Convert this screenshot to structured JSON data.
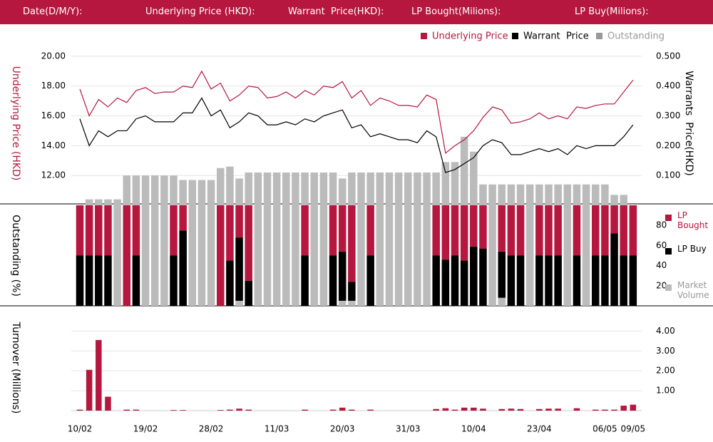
{
  "header": {
    "labels": [
      "Date(D/M/Y):",
      "Underlying Price (HKD):",
      "Warrant  Price(HKD):",
      "LP Bought(Milions):",
      "LP Buy(Milions):"
    ]
  },
  "chart_data": [
    {
      "type": "line",
      "ylabel": "Underlying Price (HKD)",
      "y2label": "Warrants  Price(HKD)",
      "ylim": [
        10,
        21
      ],
      "yticks": [
        {
          "value": 12,
          "label": "12.00"
        },
        {
          "value": 14,
          "label": "14.00"
        },
        {
          "value": 16,
          "label": "16.00"
        },
        {
          "value": 18,
          "label": "18.00"
        },
        {
          "value": 20,
          "label": "20.00"
        }
      ],
      "y2lim": [
        0,
        0.55
      ],
      "y2ticks": [
        {
          "value": 0.1,
          "label": "0.100"
        },
        {
          "value": 0.2,
          "label": "0.200"
        },
        {
          "value": 0.3,
          "label": "0.300"
        },
        {
          "value": 0.4,
          "label": "0.400"
        },
        {
          "value": 0.5,
          "label": "0.500"
        }
      ],
      "grid": true,
      "series": [
        {
          "name": "Underlying Price",
          "color": "#b5173e",
          "type": "line",
          "values": [
            17.8,
            16.0,
            17.1,
            16.6,
            17.2,
            16.9,
            17.7,
            17.9,
            17.5,
            17.6,
            17.6,
            18.0,
            17.9,
            19.0,
            17.8,
            18.2,
            17.0,
            17.4,
            18.0,
            17.9,
            17.2,
            17.3,
            17.6,
            17.2,
            17.7,
            17.4,
            18.0,
            17.9,
            18.3,
            17.2,
            17.7,
            16.7,
            17.2,
            17.0,
            16.7,
            16.7,
            16.6,
            17.4,
            17.1,
            13.5,
            14.0,
            14.4,
            15.0,
            15.9,
            16.6,
            16.4,
            15.5,
            15.6,
            15.8,
            16.2,
            15.8,
            16.0,
            15.8,
            16.6,
            16.5,
            16.7,
            16.8,
            16.8,
            17.6,
            18.4
          ]
        },
        {
          "name": "Warrant  Price",
          "color": "#000000",
          "type": "line",
          "axis": "y2",
          "values": [
            0.29,
            0.2,
            0.25,
            0.23,
            0.25,
            0.25,
            0.29,
            0.3,
            0.28,
            0.28,
            0.28,
            0.31,
            0.31,
            0.36,
            0.3,
            0.32,
            0.26,
            0.28,
            0.31,
            0.3,
            0.27,
            0.27,
            0.28,
            0.27,
            0.29,
            0.28,
            0.3,
            0.31,
            0.32,
            0.26,
            0.27,
            0.23,
            0.24,
            0.23,
            0.22,
            0.22,
            0.21,
            0.25,
            0.23,
            0.11,
            0.12,
            0.14,
            0.16,
            0.2,
            0.22,
            0.21,
            0.17,
            0.17,
            0.18,
            0.19,
            0.18,
            0.19,
            0.17,
            0.2,
            0.19,
            0.2,
            0.2,
            0.2,
            0.23,
            0.27
          ]
        },
        {
          "name": "Outstanding",
          "color": "#bbbbbb",
          "type": "bar",
          "axis": "y2",
          "values": [
            0,
            0.02,
            0.02,
            0.02,
            0.02,
            0.1,
            0.1,
            0.1,
            0.1,
            0.1,
            0.1,
            0.085,
            0.085,
            0.085,
            0.085,
            0.125,
            0.13,
            0.09,
            0.11,
            0.11,
            0.11,
            0.11,
            0.11,
            0.11,
            0.11,
            0.11,
            0.11,
            0.11,
            0.09,
            0.11,
            0.11,
            0.11,
            0.11,
            0.11,
            0.11,
            0.11,
            0.11,
            0.11,
            0.11,
            0.145,
            0.145,
            0.23,
            0.18,
            0.07,
            0.07,
            0.07,
            0.07,
            0.07,
            0.07,
            0.07,
            0.07,
            0.07,
            0.07,
            0.07,
            0.07,
            0.07,
            0.07,
            0.035,
            0.035,
            0
          ]
        }
      ]
    },
    {
      "type": "bar",
      "stacked": true,
      "ylabel": "Outstanding (%)",
      "ylim": [
        0,
        100
      ],
      "yticks": [
        20,
        40,
        60,
        80
      ],
      "series": [
        {
          "name": "Market Volume",
          "color": "#bbbbbb",
          "values": [
            0,
            0,
            0,
            0,
            100,
            0,
            0,
            100,
            100,
            100,
            0,
            0,
            100,
            100,
            100,
            0,
            0,
            5,
            0,
            100,
            100,
            100,
            100,
            100,
            0,
            100,
            100,
            0,
            5,
            5,
            100,
            0,
            100,
            100,
            100,
            100,
            100,
            100,
            0,
            0,
            0,
            0,
            0,
            0,
            100,
            8,
            0,
            0,
            100,
            0,
            0,
            0,
            100,
            0,
            100,
            0,
            0,
            0,
            0,
            0
          ]
        },
        {
          "name": "LP Buy",
          "color": "#000000",
          "values": [
            50,
            50,
            50,
            50,
            0,
            0,
            50,
            0,
            0,
            0,
            50,
            75,
            0,
            0,
            0,
            0,
            45,
            63,
            25,
            0,
            0,
            0,
            0,
            0,
            50,
            0,
            0,
            50,
            49,
            19,
            0,
            50,
            0,
            0,
            0,
            0,
            0,
            0,
            50,
            46,
            50,
            45,
            59,
            57,
            0,
            46,
            50,
            50,
            0,
            50,
            50,
            50,
            0,
            50,
            0,
            50,
            50,
            72,
            50,
            50
          ]
        },
        {
          "name": "LP Bought",
          "color": "#b5173e",
          "values": [
            50,
            50,
            50,
            50,
            0,
            100,
            50,
            0,
            0,
            0,
            50,
            25,
            0,
            0,
            0,
            100,
            55,
            32,
            75,
            0,
            0,
            0,
            0,
            0,
            50,
            0,
            0,
            50,
            46,
            76,
            0,
            50,
            0,
            0,
            0,
            0,
            0,
            0,
            50,
            54,
            50,
            55,
            41,
            43,
            0,
            46,
            50,
            50,
            0,
            50,
            50,
            50,
            0,
            50,
            0,
            50,
            50,
            28,
            50,
            50
          ]
        }
      ]
    },
    {
      "type": "bar",
      "ylabel": "Turnover (Millions)",
      "ylim": [
        0,
        4.3
      ],
      "yticks": [
        {
          "value": 1,
          "label": "1.00"
        },
        {
          "value": 2,
          "label": "2.00"
        },
        {
          "value": 3,
          "label": "3.00"
        },
        {
          "value": 4,
          "label": "4.00"
        }
      ],
      "grid": true,
      "color": "#b5173e",
      "categories": [
        "10/02",
        null,
        null,
        null,
        null,
        null,
        null,
        "19/02",
        null,
        null,
        null,
        null,
        null,
        null,
        "28/02",
        null,
        null,
        null,
        null,
        null,
        null,
        "11/03",
        null,
        null,
        null,
        null,
        null,
        null,
        "20/03",
        null,
        null,
        null,
        null,
        null,
        null,
        "31/03",
        null,
        null,
        null,
        null,
        null,
        null,
        "10/04",
        null,
        null,
        null,
        null,
        null,
        null,
        "23/04",
        null,
        null,
        null,
        null,
        null,
        null,
        "06/05",
        null,
        null,
        "09/05"
      ],
      "values": [
        0.05,
        2.05,
        3.55,
        0.7,
        0,
        0.05,
        0.05,
        0,
        0,
        0,
        0.03,
        0.03,
        0,
        0,
        0,
        0.03,
        0.05,
        0.1,
        0.05,
        0,
        0,
        0,
        0,
        0,
        0.05,
        0,
        0,
        0.05,
        0.15,
        0.05,
        0,
        0.05,
        0,
        0,
        0,
        0,
        0,
        0,
        0.08,
        0.12,
        0.05,
        0.15,
        0.15,
        0.1,
        0,
        0.08,
        0.1,
        0.08,
        0,
        0.08,
        0.1,
        0.1,
        0,
        0.12,
        0,
        0.05,
        0.05,
        0.05,
        0.25,
        0.3
      ]
    }
  ]
}
